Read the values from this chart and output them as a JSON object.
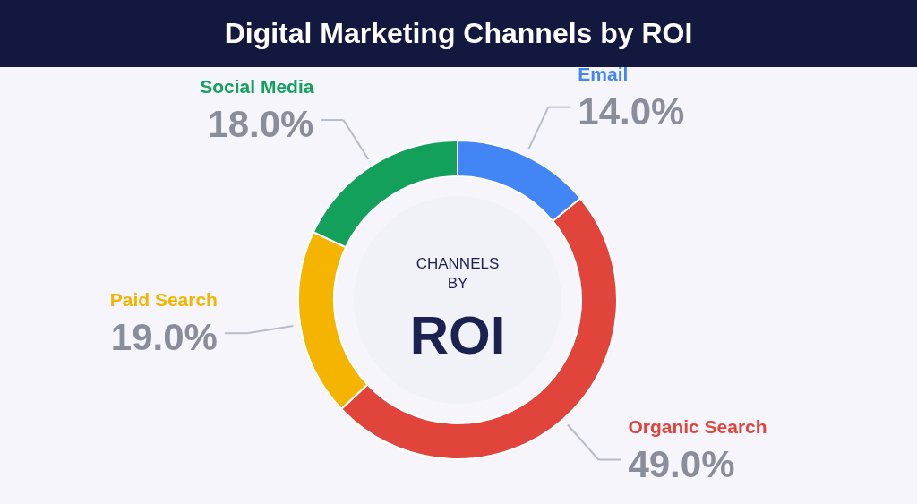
{
  "chart_data": {
    "type": "donut",
    "title": "Digital Marketing Channels by ROI",
    "categories": [
      "Email",
      "Organic Search",
      "Paid Search",
      "Social Media"
    ],
    "values": [
      14.0,
      49.0,
      19.0,
      18.0
    ],
    "colors": [
      "#4285f4",
      "#e0443b",
      "#f4b400",
      "#12a05a"
    ],
    "value_labels": [
      "14.0%",
      "49.0%",
      "19.0%",
      "18.0%"
    ],
    "annotations": [
      "CHANNELS",
      "BY",
      "ROI"
    ]
  }
}
